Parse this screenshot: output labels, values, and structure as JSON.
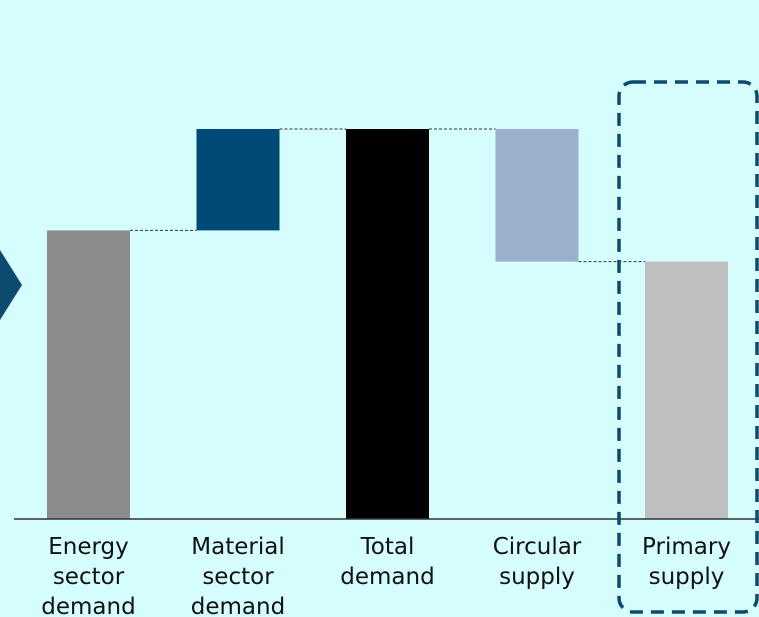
{
  "chart_data": {
    "type": "bar",
    "subtype": "waterfall",
    "categories": [
      [
        "Energy",
        "sector",
        "demand"
      ],
      [
        "Material",
        "sector",
        "demand"
      ],
      [
        "Total",
        "demand"
      ],
      [
        "Circular",
        "supply"
      ],
      [
        "Primary",
        "supply"
      ]
    ],
    "bars": [
      {
        "start": 0,
        "end": 74,
        "role": "base",
        "color": "#8c8c8c"
      },
      {
        "start": 74,
        "end": 100,
        "role": "increase",
        "color": "#004a77"
      },
      {
        "start": 0,
        "end": 100,
        "role": "total",
        "color": "#000000"
      },
      {
        "start": 100,
        "end": 66,
        "role": "decrease",
        "color": "#9bb0cd"
      },
      {
        "start": 0,
        "end": 66,
        "role": "result",
        "color": "#bfbfbf"
      }
    ],
    "ylim": [
      0,
      100
    ],
    "axis_ticks": false,
    "grid": false,
    "connectors": "dashed",
    "highlighted_category": "Primary supply",
    "title": "",
    "xlabel": "",
    "ylabel": ""
  },
  "colors": {
    "background": "#d5fdfe",
    "highlight_box": "#0c4a6e",
    "arrow": "#0c4a6e",
    "axis": "#333333"
  }
}
